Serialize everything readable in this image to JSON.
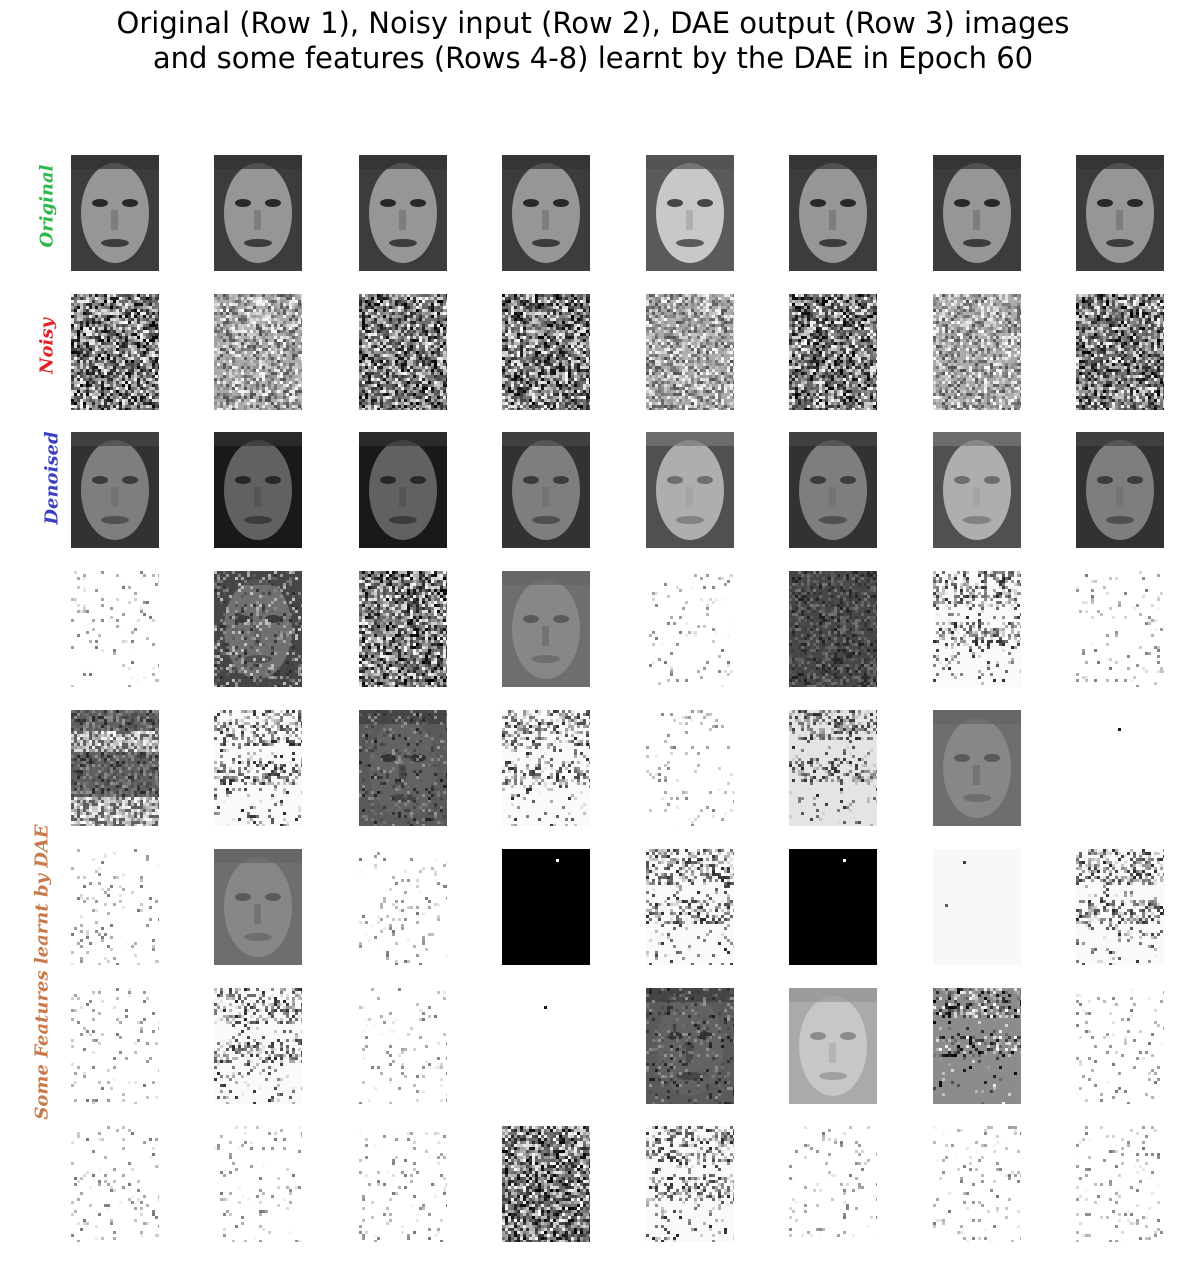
{
  "figure": {
    "title_line1": "Original (Row 1), Noisy input (Row 2), DAE output (Row 3) images",
    "title_line2": "and some features (Rows 4-8) learnt by the DAE in Epoch 60"
  },
  "row_labels": {
    "original": {
      "text": "Original",
      "color": "#2db84a"
    },
    "noisy": {
      "text": "Noisy",
      "color": "#e0202a"
    },
    "denoised": {
      "text": "Denoised",
      "color": "#3a3fc2"
    },
    "features": {
      "text": "Some Features learnt by DAE",
      "color": "#c87a4a"
    }
  },
  "grid": {
    "rows": [
      {
        "kind": "original",
        "tiles": [
          "face",
          "face",
          "face",
          "face",
          "face-light",
          "face",
          "face",
          "face"
        ]
      },
      {
        "kind": "noisy",
        "tiles": [
          "noise-dark",
          "noise-light",
          "noise-dark",
          "noise-dark",
          "noise-light",
          "noise-dark",
          "noise-light",
          "noise-dark"
        ]
      },
      {
        "kind": "denoised",
        "tiles": [
          "blur-face",
          "blur-face-dark",
          "blur-face-dark",
          "blur-face",
          "blur-face-light",
          "blur-face",
          "blur-face-light",
          "blur-face"
        ]
      },
      {
        "kind": "feature",
        "tiles": [
          "sparse",
          "mid-face",
          "noise-dark",
          "gray-face",
          "sparse",
          "dark-noise",
          "band",
          "sparse"
        ]
      },
      {
        "kind": "feature",
        "tiles": [
          "band-dark",
          "band",
          "dark-face",
          "band",
          "sparse",
          "light-band",
          "gray-face",
          "blank-dot"
        ]
      },
      {
        "kind": "feature",
        "tiles": [
          "sparse",
          "gray-face",
          "sparse",
          "black",
          "band",
          "black",
          "near-white",
          "band"
        ]
      },
      {
        "kind": "feature",
        "tiles": [
          "sparse",
          "band",
          "sparse",
          "blank-dot",
          "dark-face",
          "light-face",
          "gray-band",
          "sparse"
        ]
      },
      {
        "kind": "feature",
        "tiles": [
          "sparse",
          "sparse",
          "sparse",
          "noise-dark",
          "band",
          "sparse",
          "sparse",
          "sparse"
        ]
      }
    ]
  }
}
